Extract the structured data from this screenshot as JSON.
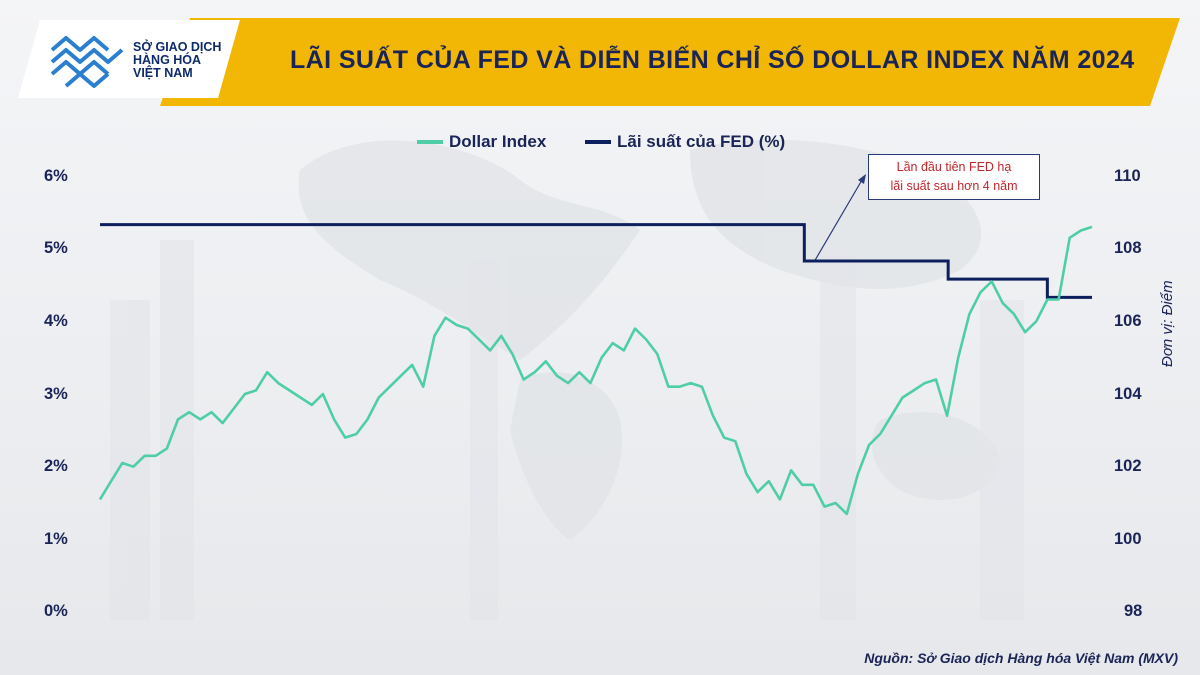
{
  "header": {
    "title": "LÃI SUẤT CỦA FED VÀ DIỄN BIẾN CHỈ SỐ DOLLAR INDEX NĂM 2024",
    "logo_lines": [
      "SỞ GIAO DỊCH",
      "HÀNG HÓA",
      "VIỆT NAM"
    ],
    "logo_icon": "mxv-logo-icon"
  },
  "colors": {
    "banner": "#f2b704",
    "dollar_index": "#4fcea6",
    "fed_rate": "#0d1f5c",
    "text": "#1a2456",
    "annotation_text": "#c0262d"
  },
  "chart_data": {
    "type": "line",
    "legend_position": "top-center",
    "grid": false,
    "y_left": {
      "ticks": [
        "0%",
        "1%",
        "2%",
        "3%",
        "4%",
        "5%",
        "6%"
      ],
      "range": [
        0,
        6
      ]
    },
    "y_right": {
      "ticks": [
        "98",
        "100",
        "102",
        "104",
        "106",
        "108",
        "110"
      ],
      "range": [
        98,
        110
      ],
      "label": "Đơn vị: Điểm"
    },
    "series": [
      {
        "name": "Dollar Index",
        "axis": "right",
        "color": "#4fcea6",
        "values": [
          101.1,
          101.6,
          102.1,
          102.0,
          102.3,
          102.3,
          102.5,
          103.3,
          103.5,
          103.3,
          103.5,
          103.2,
          103.6,
          104.0,
          104.1,
          104.6,
          104.3,
          104.1,
          103.9,
          103.7,
          104.0,
          103.3,
          102.8,
          102.9,
          103.3,
          103.9,
          104.2,
          104.5,
          104.8,
          104.2,
          105.6,
          106.1,
          105.9,
          105.8,
          105.5,
          105.2,
          105.6,
          105.1,
          104.4,
          104.6,
          104.9,
          104.5,
          104.3,
          104.6,
          104.3,
          105.0,
          105.4,
          105.2,
          105.8,
          105.5,
          105.1,
          104.2,
          104.2,
          104.3,
          104.2,
          103.4,
          102.8,
          102.7,
          101.8,
          101.3,
          101.6,
          101.1,
          101.9,
          101.5,
          101.5,
          100.9,
          101.0,
          100.7,
          101.8,
          102.6,
          102.9,
          103.4,
          103.9,
          104.1,
          104.3,
          104.4,
          103.4,
          105.0,
          106.2,
          106.8,
          107.1,
          106.5,
          106.2,
          105.7,
          106.0,
          106.6,
          106.6,
          108.3,
          108.5,
          108.6
        ]
      },
      {
        "name": "Lãi suất của FED (%)",
        "axis": "left",
        "color": "#0d1f5c",
        "type": "step",
        "steps": [
          {
            "from": 0.0,
            "value": 5.33
          },
          {
            "from": 0.71,
            "value": 4.83
          },
          {
            "from": 0.855,
            "value": 4.58
          },
          {
            "from": 0.955,
            "value": 4.33
          }
        ]
      }
    ],
    "annotation": {
      "lines": [
        "Lần đầu tiên FED hạ",
        "lãi suất sau hơn 4 năm"
      ]
    }
  },
  "source": "Nguồn: Sở Giao dịch Hàng hóa Việt Nam (MXV)"
}
